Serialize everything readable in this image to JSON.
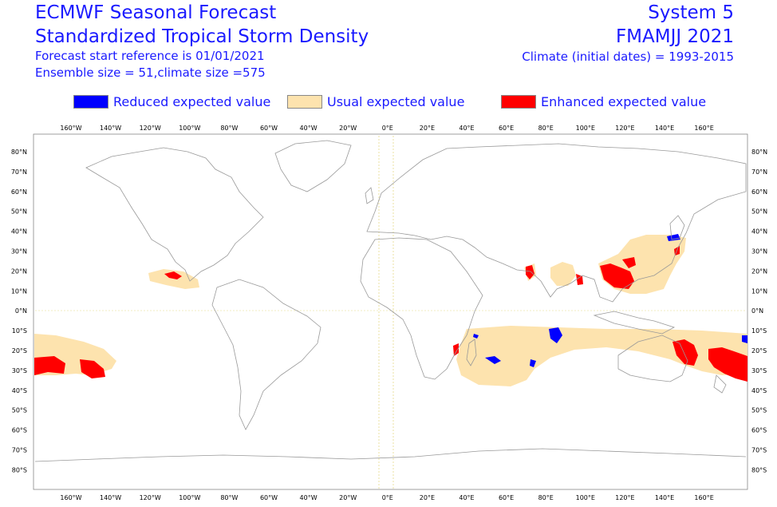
{
  "header": {
    "title_line1": "ECMWF Seasonal Forecast",
    "title_line2": "Standardized Tropical Storm Density",
    "start_ref": "Forecast start reference is 01/01/2021",
    "ensemble": "Ensemble size = 51,climate size =575",
    "system": "System 5",
    "period": "FMAMJJ 2021",
    "climate": "Climate (initial dates) = 1993-2015"
  },
  "legend": {
    "items": [
      {
        "label": "Reduced expected value",
        "color": "#0000ff"
      },
      {
        "label": "Usual expected value",
        "color": "#fde3ae"
      },
      {
        "label": "Enhanced expected value",
        "color": "#ff0000"
      }
    ]
  },
  "axes": {
    "top_ticks": [
      "160°W",
      "140°W",
      "120°W",
      "100°W",
      "80°W",
      "60°W",
      "40°W",
      "20°W",
      "0°E",
      "20°E",
      "40°E",
      "60°E",
      "80°E",
      "100°E",
      "120°E",
      "140°E",
      "160°E"
    ],
    "bottom_ticks": [
      "160°W",
      "140°W",
      "120°W",
      "100°W",
      "80°W",
      "60°W",
      "40°W",
      "20°W",
      "0°E",
      "20°E",
      "40°E",
      "60°E",
      "80°E",
      "100°E",
      "120°E",
      "140°E",
      "160°E"
    ],
    "left_ticks": [
      "80°N",
      "70°N",
      "60°N",
      "50°N",
      "40°N",
      "30°N",
      "20°N",
      "10°N",
      "0°N",
      "10°S",
      "20°S",
      "30°S",
      "40°S",
      "50°S",
      "60°S",
      "70°S",
      "80°S"
    ],
    "right_ticks": [
      "80°N",
      "70°N",
      "60°N",
      "50°N",
      "40°N",
      "30°N",
      "20°N",
      "10°N",
      "0°N",
      "10°S",
      "20°S",
      "30°S",
      "40°S",
      "50°S",
      "60°S",
      "70°S",
      "80°S"
    ]
  },
  "colors": {
    "usual": "#fde3ae",
    "enhanced": "#ff0000",
    "reduced": "#0000ff",
    "coast": "#999999",
    "text": "#1a1aff"
  }
}
